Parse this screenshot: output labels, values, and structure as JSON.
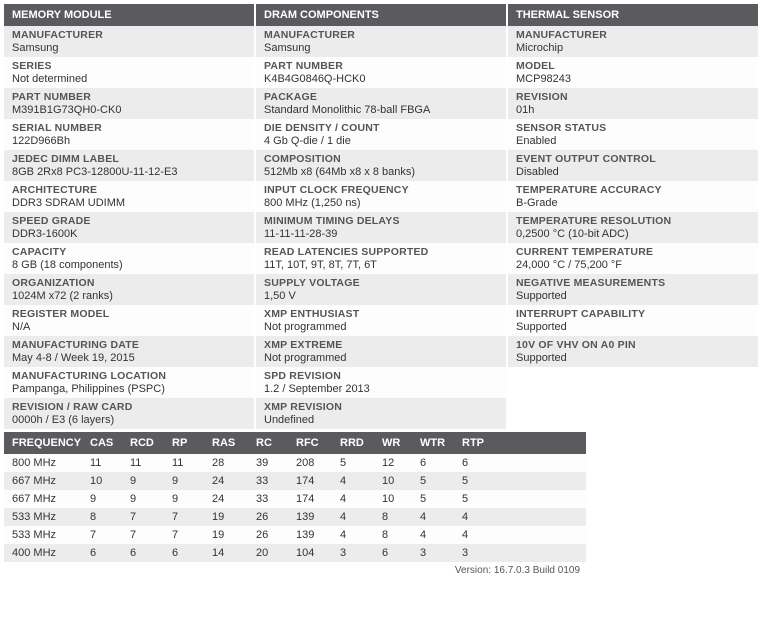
{
  "columns": [
    {
      "header": "MEMORY MODULE",
      "rows": [
        {
          "label": "MANUFACTURER",
          "value": "Samsung"
        },
        {
          "label": "SERIES",
          "value": "Not determined"
        },
        {
          "label": "PART NUMBER",
          "value": "M391B1G73QH0-CK0"
        },
        {
          "label": "SERIAL NUMBER",
          "value": "122D966Bh"
        },
        {
          "label": "JEDEC DIMM LABEL",
          "value": "8GB 2Rx8 PC3-12800U-11-12-E3"
        },
        {
          "label": "ARCHITECTURE",
          "value": "DDR3 SDRAM UDIMM"
        },
        {
          "label": "SPEED GRADE",
          "value": "DDR3-1600K"
        },
        {
          "label": "CAPACITY",
          "value": "8 GB (18 components)"
        },
        {
          "label": "ORGANIZATION",
          "value": "1024M x72 (2 ranks)"
        },
        {
          "label": "REGISTER MODEL",
          "value": "N/A"
        },
        {
          "label": "MANUFACTURING DATE",
          "value": "May 4-8 / Week 19, 2015"
        },
        {
          "label": "MANUFACTURING LOCATION",
          "value": "Pampanga, Philippines (PSPC)"
        },
        {
          "label": "REVISION / RAW CARD",
          "value": "0000h / E3 (6 layers)"
        }
      ]
    },
    {
      "header": "DRAM COMPONENTS",
      "rows": [
        {
          "label": "MANUFACTURER",
          "value": "Samsung"
        },
        {
          "label": "PART NUMBER",
          "value": "K4B4G0846Q-HCK0"
        },
        {
          "label": "PACKAGE",
          "value": "Standard Monolithic 78-ball FBGA"
        },
        {
          "label": "DIE DENSITY / COUNT",
          "value": "4 Gb Q-die / 1 die"
        },
        {
          "label": "COMPOSITION",
          "value": "512Mb x8 (64Mb x8 x 8 banks)"
        },
        {
          "label": "INPUT CLOCK FREQUENCY",
          "value": "800 MHz (1,250 ns)"
        },
        {
          "label": "MINIMUM TIMING DELAYS",
          "value": "11-11-11-28-39"
        },
        {
          "label": "READ LATENCIES SUPPORTED",
          "value": "11T, 10T, 9T, 8T, 7T, 6T"
        },
        {
          "label": "SUPPLY VOLTAGE",
          "value": "1,50 V"
        },
        {
          "label": "XMP ENTHUSIAST",
          "value": "Not programmed"
        },
        {
          "label": "XMP EXTREME",
          "value": "Not programmed"
        },
        {
          "label": "SPD REVISION",
          "value": "1.2 / September 2013"
        },
        {
          "label": "XMP REVISION",
          "value": "Undefined"
        }
      ]
    },
    {
      "header": "THERMAL SENSOR",
      "rows": [
        {
          "label": "MANUFACTURER",
          "value": "Microchip"
        },
        {
          "label": "MODEL",
          "value": "MCP98243"
        },
        {
          "label": "REVISION",
          "value": "01h"
        },
        {
          "label": "SENSOR STATUS",
          "value": "Enabled"
        },
        {
          "label": "EVENT OUTPUT CONTROL",
          "value": "Disabled"
        },
        {
          "label": "TEMPERATURE ACCURACY",
          "value": "B-Grade"
        },
        {
          "label": "TEMPERATURE RESOLUTION",
          "value": "0,2500 °C (10-bit ADC)"
        },
        {
          "label": "CURRENT TEMPERATURE",
          "value": "24,000 °C / 75,200 °F"
        },
        {
          "label": "NEGATIVE MEASUREMENTS",
          "value": "Supported"
        },
        {
          "label": "INTERRUPT CAPABILITY",
          "value": "Supported"
        },
        {
          "label": "10V OF VHV ON A0 PIN",
          "value": "Supported"
        }
      ]
    }
  ],
  "timing_headers": [
    "FREQUENCY",
    "CAS",
    "RCD",
    "RP",
    "RAS",
    "RC",
    "RFC",
    "RRD",
    "WR",
    "WTR",
    "RTP"
  ],
  "timing_rows": [
    [
      "800 MHz",
      "11",
      "11",
      "11",
      "28",
      "39",
      "208",
      "5",
      "12",
      "6",
      "6"
    ],
    [
      "667 MHz",
      "10",
      "9",
      "9",
      "24",
      "33",
      "174",
      "4",
      "10",
      "5",
      "5"
    ],
    [
      "667 MHz",
      "9",
      "9",
      "9",
      "24",
      "33",
      "174",
      "4",
      "10",
      "5",
      "5"
    ],
    [
      "533 MHz",
      "8",
      "7",
      "7",
      "19",
      "26",
      "139",
      "4",
      "8",
      "4",
      "4"
    ],
    [
      "533 MHz",
      "7",
      "7",
      "7",
      "19",
      "26",
      "139",
      "4",
      "8",
      "4",
      "4"
    ],
    [
      "400 MHz",
      "6",
      "6",
      "6",
      "14",
      "20",
      "104",
      "3",
      "6",
      "3",
      "3"
    ]
  ],
  "version": "Version: 16.7.0.3 Build 0109"
}
